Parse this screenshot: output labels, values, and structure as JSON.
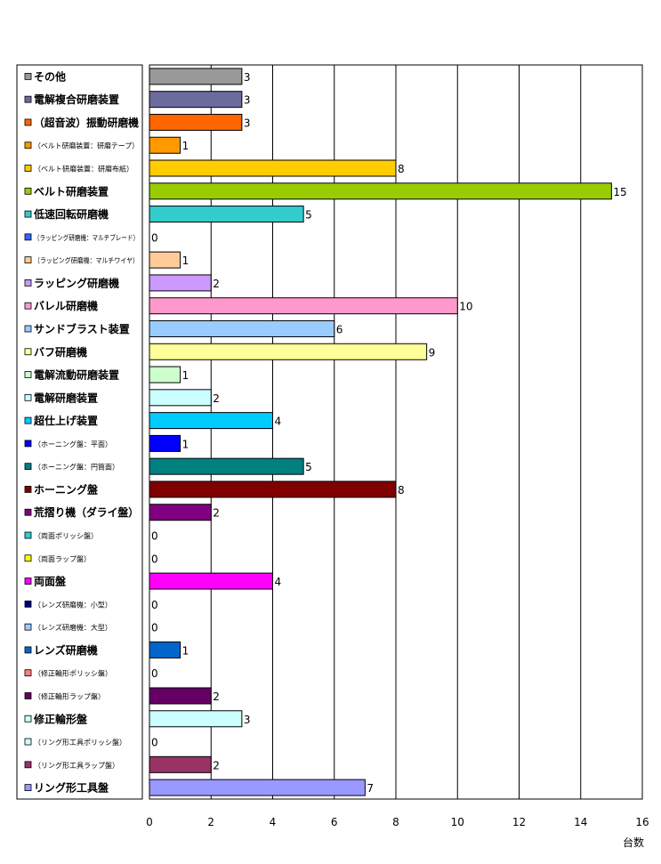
{
  "chart_data": {
    "type": "bar",
    "orientation": "horizontal",
    "xlabel": "台数",
    "xlim": [
      0,
      16
    ],
    "x_ticks": [
      "0",
      "2",
      "4",
      "6",
      "8",
      "10",
      "12",
      "14",
      "16"
    ],
    "grid": "vertical",
    "legend_position": "left",
    "categories": [
      {
        "name": "その他",
        "value": 3,
        "color": "#999999",
        "emphasis": true
      },
      {
        "name": "電解複合研磨装置",
        "value": 3,
        "color": "#6B6B9E",
        "emphasis": true
      },
      {
        "name": "（超音波）振動研磨機",
        "value": 3,
        "color": "#FF6600",
        "emphasis": true
      },
      {
        "name": "（ベルト研磨装置：研磨テープ）",
        "value": 1,
        "color": "#FF9900",
        "emphasis": false
      },
      {
        "name": "（ベルト研磨装置：研磨布紙）",
        "value": 8,
        "color": "#FFCC00",
        "emphasis": false
      },
      {
        "name": "ベルト研磨装置",
        "value": 15,
        "color": "#99CC00",
        "emphasis": true
      },
      {
        "name": "低速回転研磨機",
        "value": 5,
        "color": "#33CCCC",
        "emphasis": true
      },
      {
        "name": "（ラッピング研磨機：マルチブレード）",
        "value": 0,
        "color": "#3366FF",
        "emphasis": false
      },
      {
        "name": "（ラッピング研磨機：マルチワイヤ）",
        "value": 1,
        "color": "#FFCC99",
        "emphasis": false
      },
      {
        "name": "ラッピング研磨機",
        "value": 2,
        "color": "#CC99FF",
        "emphasis": true
      },
      {
        "name": "バレル研磨機",
        "value": 10,
        "color": "#FF99CC",
        "emphasis": true
      },
      {
        "name": "サンドブラスト装置",
        "value": 6,
        "color": "#99CCFF",
        "emphasis": true
      },
      {
        "name": "バフ研磨機",
        "value": 9,
        "color": "#FFFF99",
        "emphasis": true
      },
      {
        "name": "電解流動研磨装置",
        "value": 1,
        "color": "#CCFFCC",
        "emphasis": true
      },
      {
        "name": "電解研磨装置",
        "value": 2,
        "color": "#CCFFFF",
        "emphasis": true
      },
      {
        "name": "超仕上げ装置",
        "value": 4,
        "color": "#00CCFF",
        "emphasis": true
      },
      {
        "name": "（ホーニング盤：平面）",
        "value": 1,
        "color": "#0000FF",
        "emphasis": false
      },
      {
        "name": "（ホーニング盤：円筒面）",
        "value": 5,
        "color": "#008080",
        "emphasis": false
      },
      {
        "name": "ホーニング盤",
        "value": 8,
        "color": "#800000",
        "emphasis": true
      },
      {
        "name": "荒摺り機（ダライ盤）",
        "value": 2,
        "color": "#800080",
        "emphasis": true
      },
      {
        "name": "（両面ポリッシ盤）",
        "value": 0,
        "color": "#33CCCC",
        "emphasis": false
      },
      {
        "name": "（両面ラップ盤）",
        "value": 0,
        "color": "#FFFF00",
        "emphasis": false
      },
      {
        "name": "両面盤",
        "value": 4,
        "color": "#FF00FF",
        "emphasis": true
      },
      {
        "name": "（レンズ研磨機：小型）",
        "value": 0,
        "color": "#000080",
        "emphasis": false
      },
      {
        "name": "（レンズ研磨機：大型）",
        "value": 0,
        "color": "#99CCFF",
        "emphasis": false
      },
      {
        "name": "レンズ研磨機",
        "value": 1,
        "color": "#0066CC",
        "emphasis": true
      },
      {
        "name": "（修正輪形ポリッシ盤）",
        "value": 0,
        "color": "#FF8080",
        "emphasis": false
      },
      {
        "name": "（修正輪形ラップ盤）",
        "value": 2,
        "color": "#660066",
        "emphasis": false
      },
      {
        "name": "修正輪形盤",
        "value": 3,
        "color": "#CCFFFF",
        "emphasis": true
      },
      {
        "name": "（リング形工具ポリッシ盤）",
        "value": 0,
        "color": "#CCFFFF",
        "emphasis": false
      },
      {
        "name": "（リング形工具ラップ盤）",
        "value": 2,
        "color": "#993366",
        "emphasis": false
      },
      {
        "name": "リング形工具盤",
        "value": 7,
        "color": "#9999FF",
        "emphasis": true
      }
    ]
  }
}
